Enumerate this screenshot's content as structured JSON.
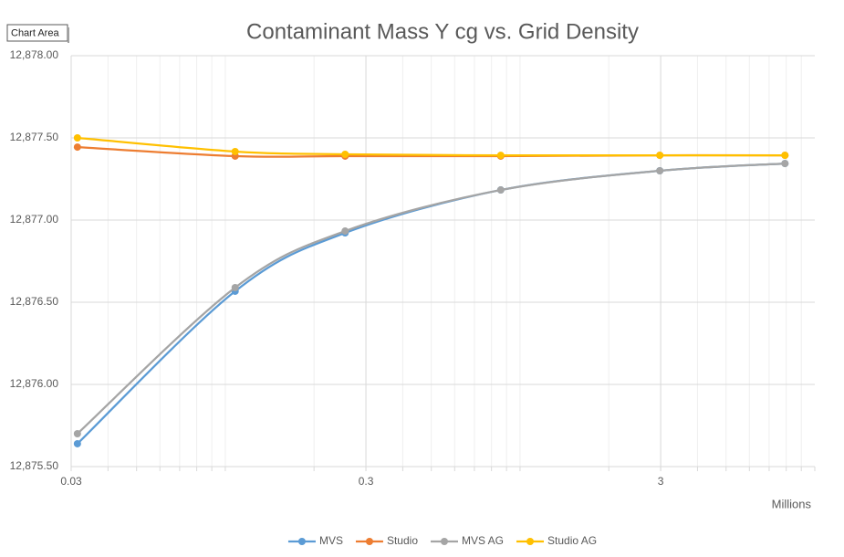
{
  "tooltip": "Chart Area",
  "chart_data": {
    "type": "line",
    "title": "Contaminant Mass Y cg vs. Grid Density",
    "x_label": "Millions",
    "x": [
      0.0315,
      0.108,
      0.255,
      0.86,
      2.98,
      7.92
    ],
    "xlim": [
      0.03,
      10
    ],
    "xticks": [
      0.03,
      0.3,
      3
    ],
    "xscale": "log",
    "ylim": [
      12875.5,
      12878
    ],
    "yticks": [
      {
        "value": 12875.5,
        "label": "12,875.50"
      },
      {
        "value": 12876,
        "label": "12,876.00"
      },
      {
        "value": 12876.5,
        "label": "12,876.50"
      },
      {
        "value": 12877,
        "label": "12,877.00"
      },
      {
        "value": 12877.5,
        "label": "12,877.50"
      },
      {
        "value": 12878,
        "label": "12,878.00"
      }
    ],
    "grid": true,
    "smooth": true,
    "legend": "bottom",
    "series": [
      {
        "name": "MVS",
        "color": "#5b9bd5",
        "values": [
          12875.639,
          12876.567,
          12876.922,
          12877.183,
          12877.3,
          12877.344
        ]
      },
      {
        "name": "Studio",
        "color": "#ed7d31",
        "values": [
          12877.444,
          12877.389,
          12877.389,
          12877.389,
          12877.394,
          12877.394
        ]
      },
      {
        "name": "MVS AG",
        "color": "#a5a5a5",
        "values": [
          12875.7,
          12876.589,
          12876.933,
          12877.183,
          12877.3,
          12877.344
        ]
      },
      {
        "name": "Studio AG",
        "color": "#ffc000",
        "values": [
          12877.5,
          12877.417,
          12877.4,
          12877.394,
          12877.394,
          12877.394
        ]
      }
    ]
  }
}
